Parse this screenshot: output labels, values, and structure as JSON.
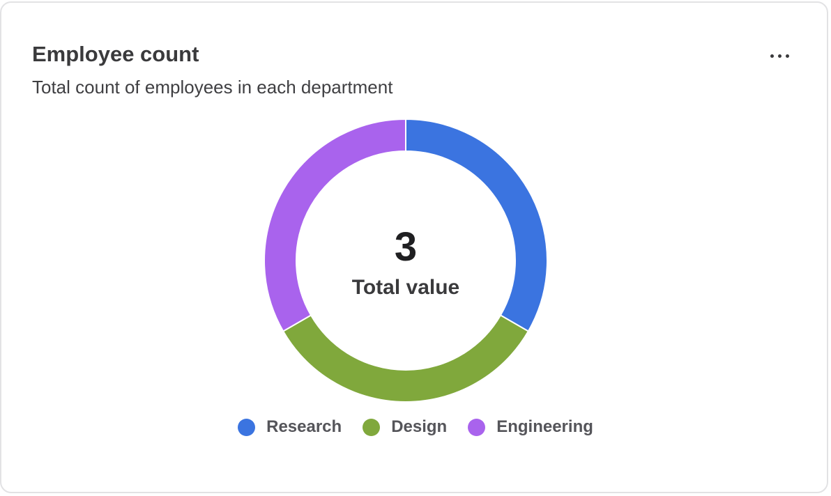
{
  "card": {
    "title": "Employee count",
    "subtitle": "Total count of employees in each department",
    "menu_icon": "more-horizontal-icon"
  },
  "chart_data": {
    "type": "pie",
    "donut": true,
    "categories": [
      "Research",
      "Design",
      "Engineering"
    ],
    "values": [
      1,
      1,
      1
    ],
    "colors": [
      "#3b74e0",
      "#80a83c",
      "#a963ed"
    ],
    "center_value": "3",
    "center_label": "Total value",
    "legend_position": "bottom"
  }
}
